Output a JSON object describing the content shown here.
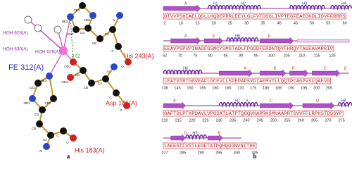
{
  "panel_a": {
    "caption": "a",
    "fe_label": "FE 312(A)",
    "water_labels": [
      "HOH 628(A)",
      "HOH 630(A)",
      "HOH 629(A)"
    ],
    "residue_labels": [
      "His 243(A)",
      "Asp 185(A)",
      "His 183(A)"
    ],
    "distance": "3.02",
    "atoms": [
      "CE1",
      "NE2",
      "CD2",
      "CG",
      "ND1",
      "CB",
      "CA",
      "N",
      "C",
      "O",
      "CG",
      "OD1",
      "OD2",
      "CB",
      "CA",
      "N",
      "C",
      "O",
      "NE2",
      "CE1",
      "ND1",
      "CG",
      "CD2",
      "CB",
      "CA",
      "C",
      "O",
      "N"
    ]
  },
  "panel_b": {
    "caption": "b",
    "rows": [
      {
        "labels": [
          "A",
          "H1",
          "H2",
          "H3",
          "H4"
        ],
        "sequence": "DTVVPSHIAELQGLLHQDEPRRLEEYLGLFVTDGGLIVPTEGFEAEGKDLIDVFFRRRS",
        "numbers": [
          2,
          10,
          15,
          20,
          25,
          30,
          35,
          40,
          45,
          50,
          55,
          60
        ]
      },
      {
        "labels": [
          "A",
          "β",
          "H5",
          "β"
        ],
        "sequence": "EEAVPSPVPINAGFGSMCYSMGTADLFPGGDFERDNTQYFHRQYTASEAVARRIV",
        "numbers": [
          62,
          70,
          75,
          80,
          85,
          90,
          95,
          100,
          105,
          110,
          115,
          120
        ]
      },
      {
        "labels": [
          "H6",
          "A",
          "B",
          "B",
          "C",
          "β"
        ],
        "sequence": "LEATGTRTGGVEAFLDCEVLLSPEPAPSYDIAEMVTLLQQTPCAGPVSLQAEVG",
        "numbers": [
          138,
          145,
          150,
          155,
          160,
          165,
          170,
          175,
          180,
          185,
          190,
          195,
          200,
          205
        ]
      },
      {
        "labels": [
          "A",
          "H7",
          "A",
          "C",
          "D",
          "H8"
        ],
        "sequence": "GAFTDLPTKPDAVLVPGSATLATPTQGQVKAPRKSMVAAPRTSVVFFLRPHSTDSSYP",
        "numbers": [
          210,
          215,
          220,
          225,
          230,
          235,
          240,
          245,
          250,
          255,
          260,
          265,
          270,
          275
        ]
      },
      {
        "labels": [
          "D",
          "H9",
          "B"
        ],
        "sequence": "LAEEGTFVSTLEGETATPQHQGGNVNITRE",
        "numbers": [
          277,
          285,
          290,
          295,
          300,
          305
        ]
      }
    ]
  }
}
